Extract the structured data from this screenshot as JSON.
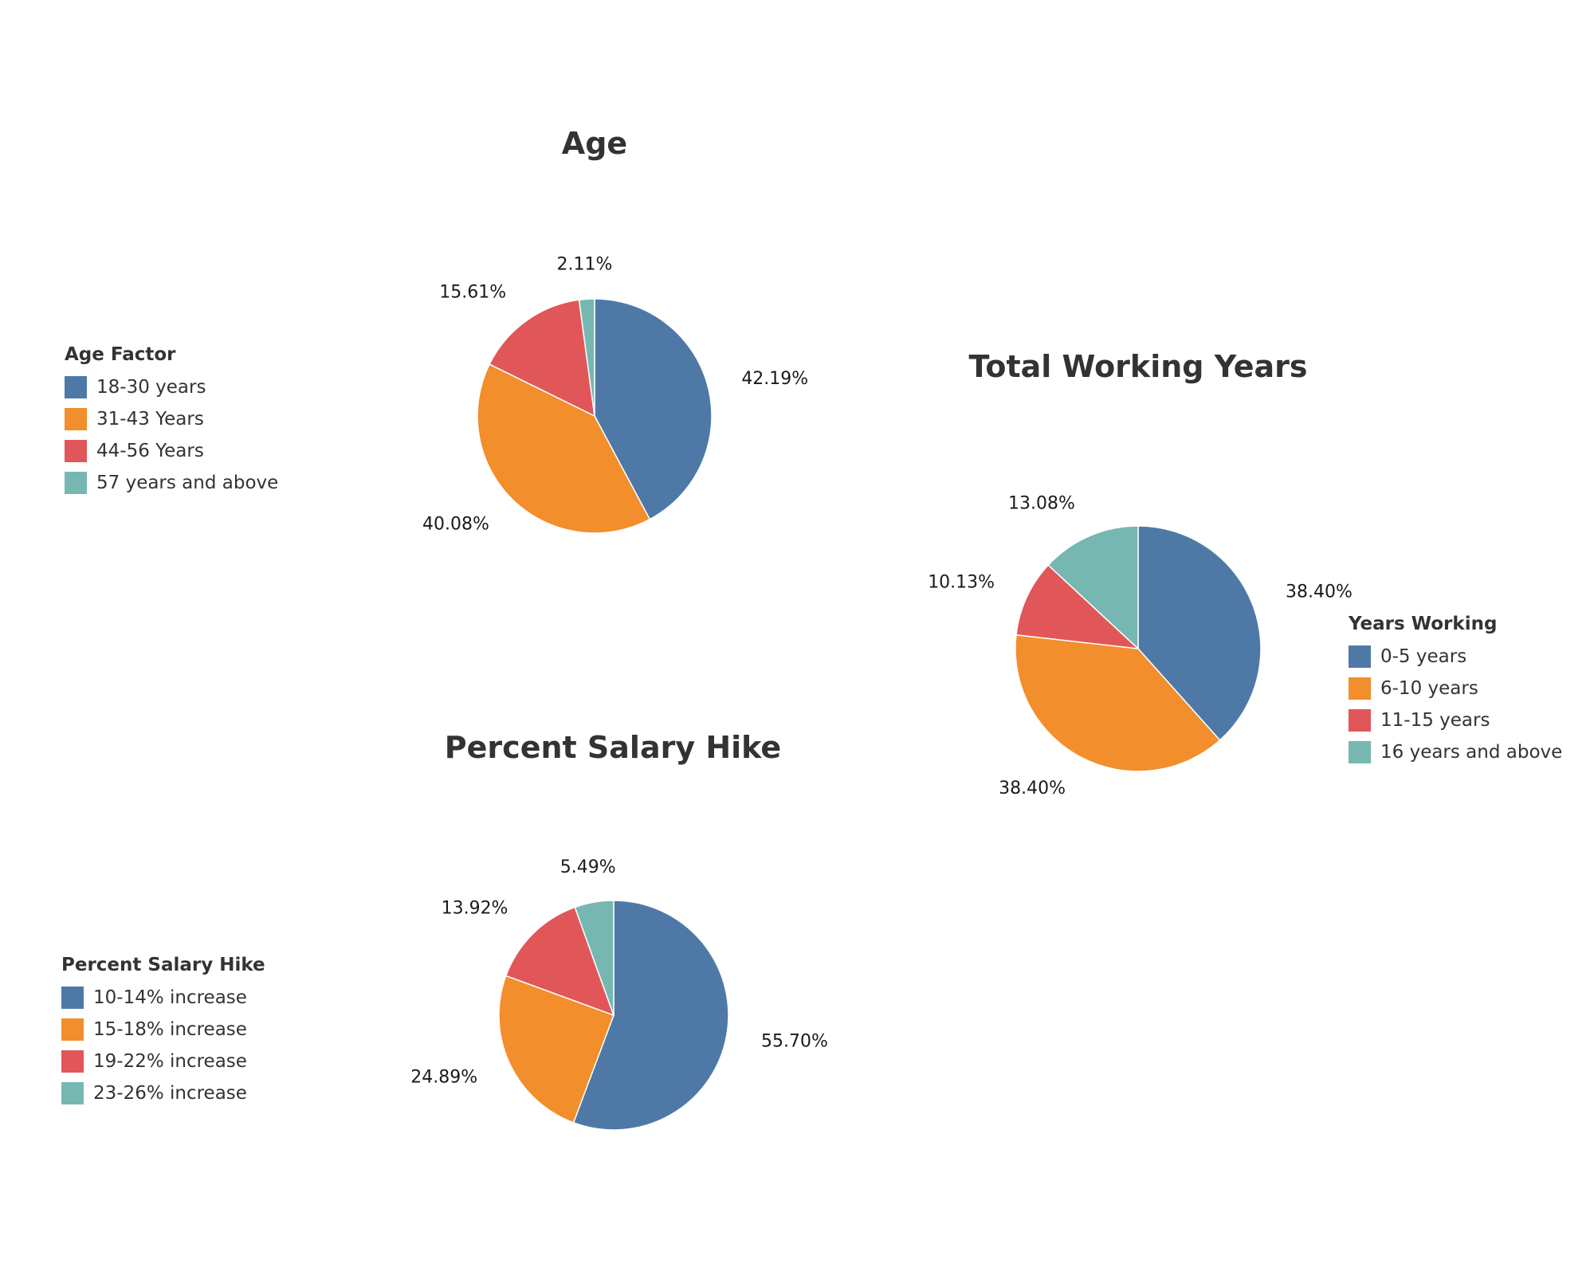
{
  "colors": {
    "blue": "#4e79a7",
    "orange": "#f28e2b",
    "red": "#e15759",
    "teal": "#76b7b2"
  },
  "charts": {
    "age": {
      "title": "Age",
      "legend_title": "Age Factor",
      "legend": [
        "18-30 years",
        "31-43 Years",
        "44-56 Years",
        "57 years and above"
      ]
    },
    "working": {
      "title": "Total Working Years",
      "legend_title": "Years Working",
      "legend": [
        "0-5 years",
        "6-10 years",
        "11-15 years",
        "16 years and above"
      ]
    },
    "salary": {
      "title": "Percent Salary Hike",
      "legend_title": "Percent Salary Hike",
      "legend": [
        "10-14% increase",
        "15-18% increase",
        "19-22% increase",
        "23-26% increase"
      ]
    }
  },
  "chart_data": [
    {
      "type": "pie",
      "title": "Age",
      "legend_title": "Age Factor",
      "legend_position": "left",
      "categories": [
        "18-30 years",
        "31-43 Years",
        "44-56 Years",
        "57 years and above"
      ],
      "values": [
        42.19,
        40.08,
        15.61,
        2.11
      ],
      "labels": [
        "42.19%",
        "40.08%",
        "15.61%",
        "2.11%"
      ],
      "colors": [
        "#4e79a7",
        "#f28e2b",
        "#e15759",
        "#76b7b2"
      ]
    },
    {
      "type": "pie",
      "title": "Total Working Years",
      "legend_title": "Years Working",
      "legend_position": "right",
      "categories": [
        "0-5 years",
        "6-10 years",
        "11-15 years",
        "16 years and above"
      ],
      "values": [
        38.4,
        38.4,
        10.13,
        13.08
      ],
      "labels": [
        "38.40%",
        "38.40%",
        "10.13%",
        "13.08%"
      ],
      "colors": [
        "#4e79a7",
        "#f28e2b",
        "#e15759",
        "#76b7b2"
      ]
    },
    {
      "type": "pie",
      "title": "Percent Salary Hike",
      "legend_title": "Percent Salary Hike",
      "legend_position": "left",
      "categories": [
        "10-14% increase",
        "15-18% increase",
        "19-22% increase",
        "23-26% increase"
      ],
      "values": [
        55.7,
        24.89,
        13.92,
        5.49
      ],
      "labels": [
        "55.70%",
        "24.89%",
        "13.92%",
        "5.49%"
      ],
      "colors": [
        "#4e79a7",
        "#f28e2b",
        "#e15759",
        "#76b7b2"
      ]
    }
  ]
}
